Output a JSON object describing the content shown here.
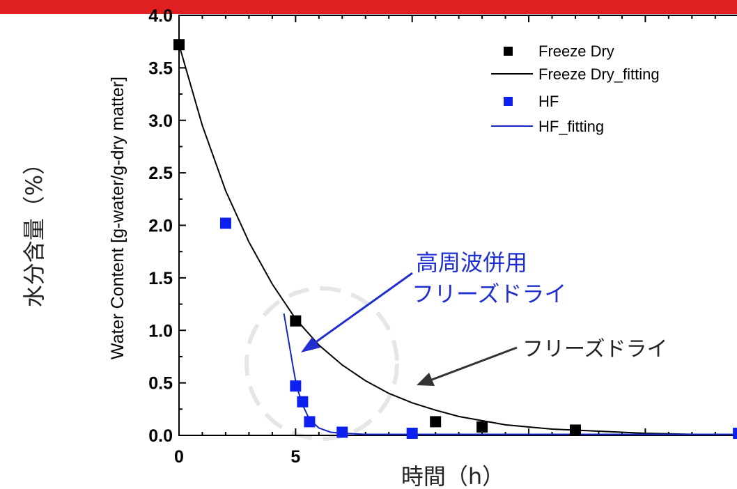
{
  "header_bar_color": "#e02020",
  "outer_ylabel": "水分含量（%）",
  "outer_xlabel": "時間（h）",
  "annotations": {
    "hf_line1": "高周波併用",
    "hf_line2": "フリーズドライ",
    "fd_label": "フリーズドライ"
  },
  "chart_data": {
    "type": "scatter",
    "ylabel": "Water Content [g-water/g-dry matter]",
    "xlabel": "",
    "xlim": [
      0,
      24.5
    ],
    "ylim": [
      0,
      4.0
    ],
    "x_ticks": [
      0,
      5
    ],
    "y_ticks": [
      "0.0",
      "0.5",
      "1.0",
      "1.5",
      "2.0",
      "2.5",
      "3.0",
      "3.5",
      "4.0"
    ],
    "legend_position": "top-right",
    "series": [
      {
        "name": "Freeze Dry",
        "kind": "points",
        "color": "#000000",
        "x": [
          0,
          5,
          11,
          13,
          17,
          24
        ],
        "y": [
          3.72,
          1.09,
          0.13,
          0.08,
          0.05,
          0.02
        ]
      },
      {
        "name": "Freeze Dry_fitting",
        "kind": "line",
        "color": "#000000",
        "x": [
          0,
          1,
          2,
          3,
          4,
          5,
          6,
          7,
          8,
          9,
          10,
          11,
          12,
          13,
          14,
          16,
          18,
          20,
          22,
          24.5
        ],
        "y": [
          3.72,
          2.95,
          2.33,
          1.84,
          1.44,
          1.11,
          0.86,
          0.67,
          0.52,
          0.4,
          0.31,
          0.24,
          0.18,
          0.14,
          0.1,
          0.06,
          0.04,
          0.02,
          0.01,
          0.01
        ]
      },
      {
        "name": "HF",
        "kind": "points",
        "color": "#0d20f0",
        "x": [
          2,
          5,
          5.3,
          5.6,
          7,
          10,
          24
        ],
        "y": [
          2.02,
          0.47,
          0.32,
          0.13,
          0.03,
          0.02,
          0.02
        ]
      },
      {
        "name": "HF_fitting",
        "kind": "line",
        "color": "#1526c8",
        "x": [
          4.5,
          4.7,
          4.9,
          5.0,
          5.1,
          5.3,
          5.6,
          6.0,
          6.5,
          7,
          8,
          10,
          14,
          20,
          24.5
        ],
        "y": [
          1.16,
          0.9,
          0.64,
          0.52,
          0.43,
          0.29,
          0.15,
          0.07,
          0.03,
          0.02,
          0.01,
          0.01,
          0.01,
          0.01,
          0.01
        ]
      }
    ]
  }
}
